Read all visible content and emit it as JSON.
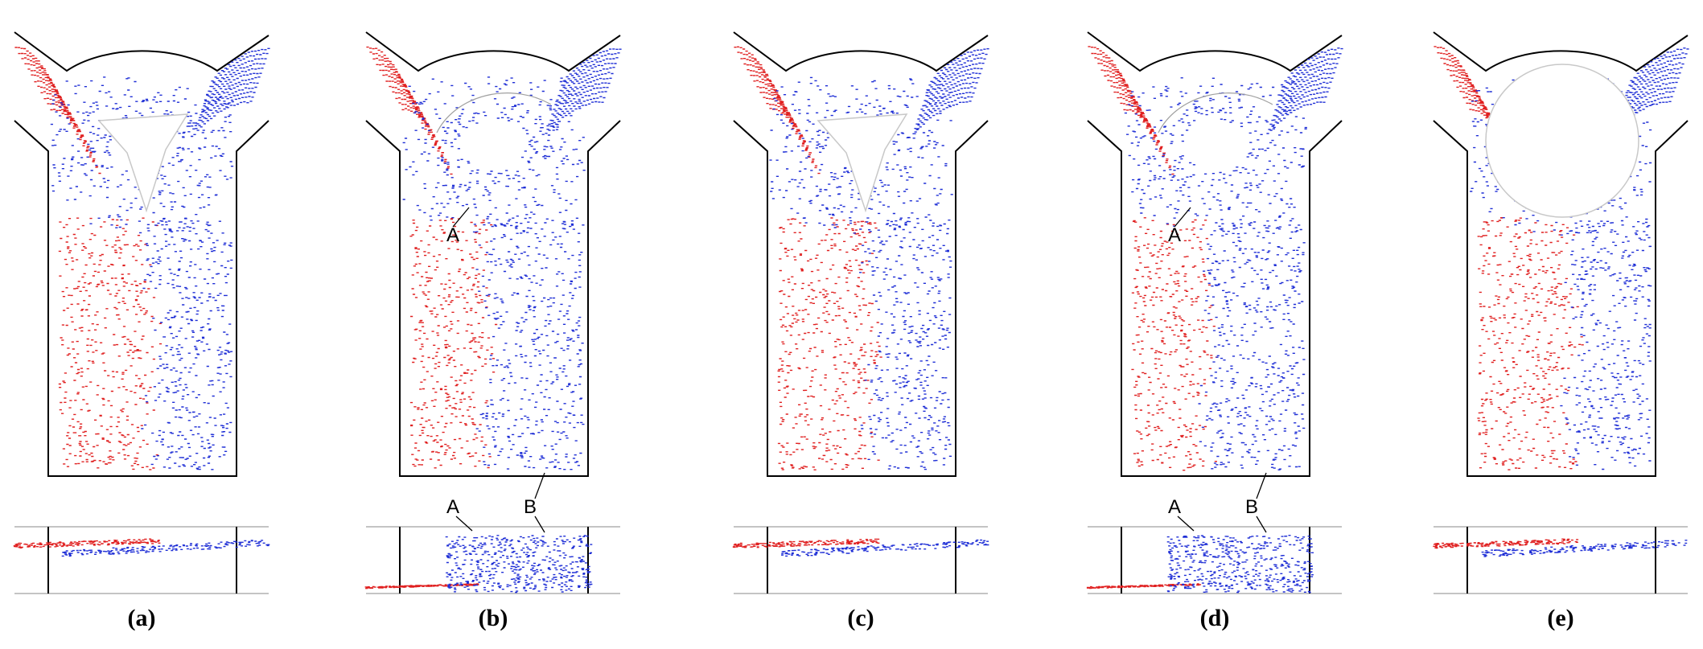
{
  "colors": {
    "fluid_red": "#e02020",
    "fluid_blue": "#1f2fd6",
    "wall": "#000000",
    "obstacle_edge": "#c8c8c8"
  },
  "panels": [
    {
      "id": "a",
      "caption": "(a)",
      "obstacle": "tri",
      "chaotic": false,
      "labels": []
    },
    {
      "id": "b",
      "caption": "(b)",
      "obstacle": "none",
      "chaotic": true,
      "labels": [
        "A",
        "B"
      ]
    },
    {
      "id": "c",
      "caption": "(c)",
      "obstacle": "tri",
      "chaotic": false,
      "labels": []
    },
    {
      "id": "d",
      "caption": "(d)",
      "obstacle": "none",
      "chaotic": true,
      "labels": [
        "A",
        "B"
      ]
    },
    {
      "id": "e",
      "caption": "(e)",
      "obstacle": "star",
      "chaotic": false,
      "labels": []
    }
  ]
}
